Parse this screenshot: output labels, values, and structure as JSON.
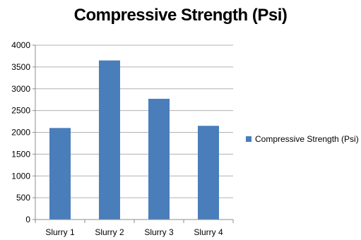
{
  "chart_data": {
    "type": "bar",
    "title": "Compressive Strength (Psi)",
    "categories": [
      "Slurry 1",
      "Slurry 2",
      "Slurry 3",
      "Slurry 4"
    ],
    "series": [
      {
        "name": "Compressive Strength (Psi)",
        "values": [
          2100,
          3650,
          2770,
          2150
        ],
        "color": "#4a7ebb"
      }
    ],
    "ylim": [
      0,
      4000
    ],
    "yticks": [
      0,
      500,
      1000,
      1500,
      2000,
      2500,
      3000,
      3500,
      4000
    ],
    "grid": true,
    "legend": "right"
  }
}
